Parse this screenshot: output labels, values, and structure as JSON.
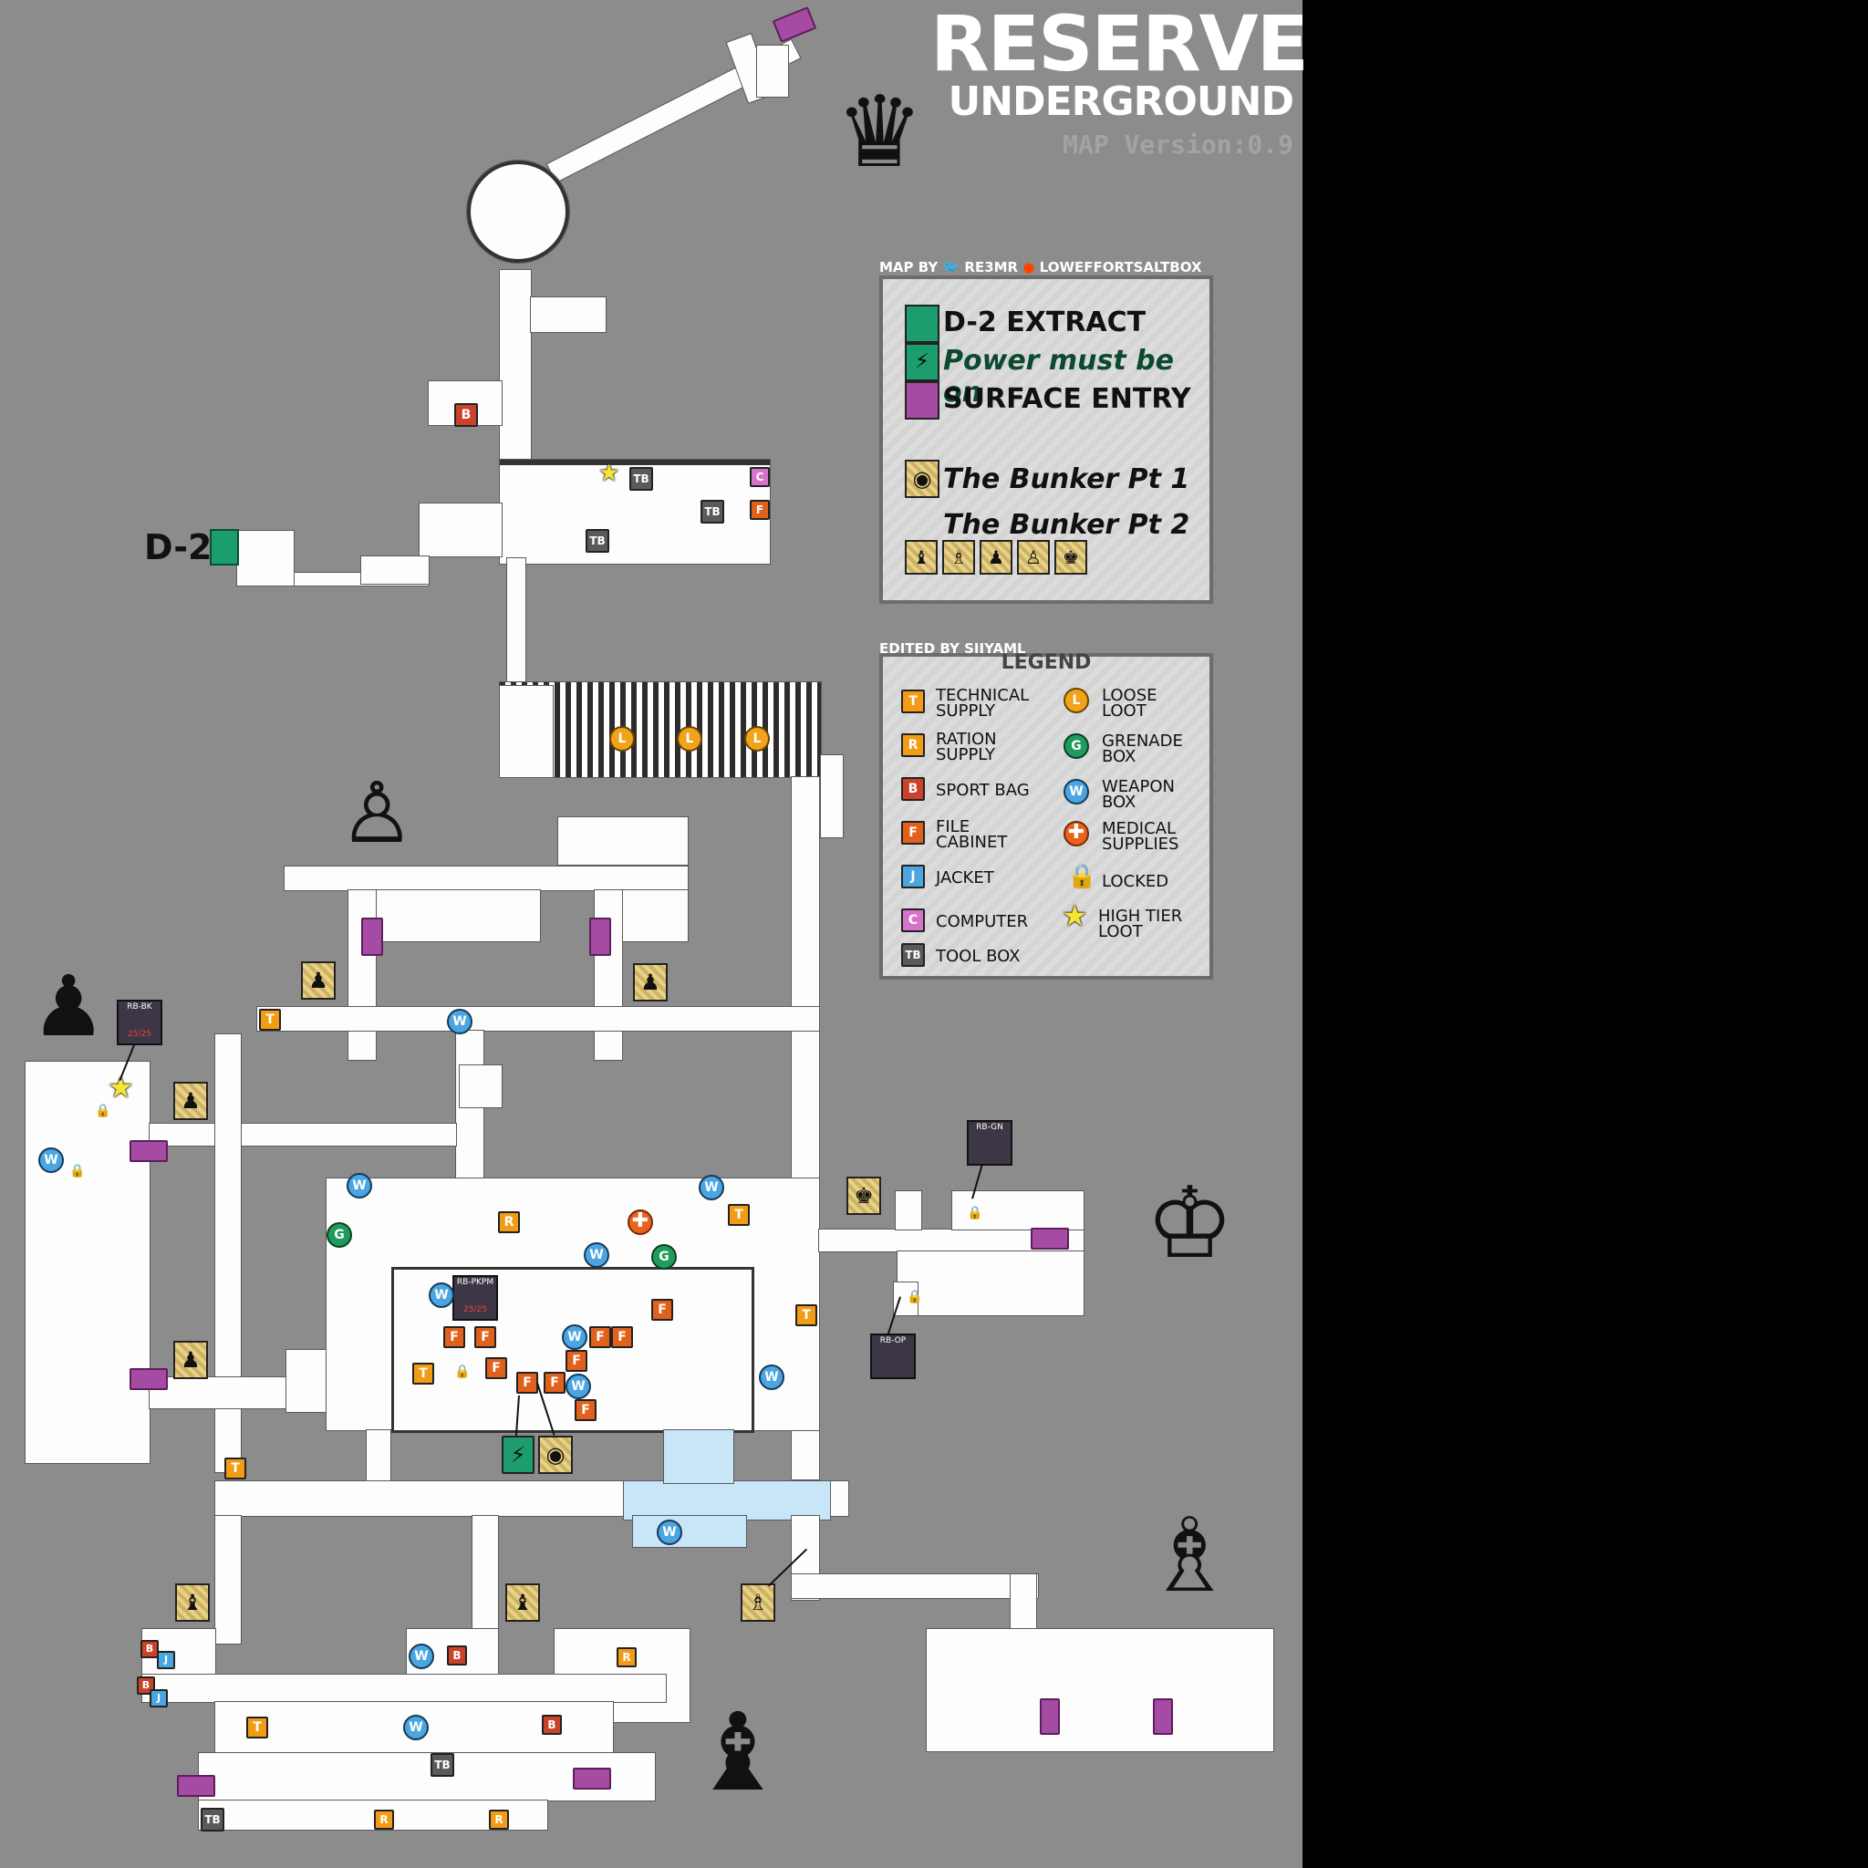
{
  "header": {
    "title": "RESERVE",
    "subtitle": "UNDERGROUND",
    "version": "MAP  Version:0.9"
  },
  "credits": {
    "map_by": "MAP BY",
    "twitter": "RE3MR",
    "reddit": "LOWEFFORTSALTBOX",
    "edited_by": "EDITED BY SIIYAML"
  },
  "extract_legend": {
    "d2_extract": "D-2 EXTRACT",
    "power": "Power must be on",
    "surface_entry": "SURFACE ENTRY",
    "bunker_pt1": "The Bunker Pt 1",
    "bunker_pt2": "The Bunker Pt 2"
  },
  "legend": {
    "title": "LEGEND",
    "technical_supply": [
      "TECHNICAL",
      "SUPPLY"
    ],
    "ration_supply": [
      "RATION",
      "SUPPLY"
    ],
    "sport_bag": "SPORT BAG",
    "file_cabinet": [
      "FILE",
      "CABINET"
    ],
    "jacket": "JACKET",
    "computer": "COMPUTER",
    "tool_box": "TOOL BOX",
    "loose_loot": [
      "LOOSE",
      "LOOT"
    ],
    "grenade_box": [
      "GRENADE",
      "BOX"
    ],
    "weapon_box": [
      "WEAPON",
      "BOX"
    ],
    "medical_supplies": [
      "MEDICAL",
      "SUPPLIES"
    ],
    "locked": "LOCKED",
    "high_tier_loot": [
      "HIGH TIER",
      "LOOT"
    ]
  },
  "marker_letters": {
    "t": "T",
    "r": "R",
    "b": "B",
    "f": "F",
    "j": "J",
    "c": "C",
    "tb": "TB",
    "w": "W",
    "l": "L",
    "g": "G"
  },
  "map_labels": {
    "d2": "D-2",
    "keycards": {
      "bk": {
        "name": "RB-BK",
        "count": "25/25"
      },
      "pkpm": {
        "name": "RB-PKPM",
        "count": "25/25"
      },
      "gn": {
        "name": "RB-GN"
      },
      "op": {
        "name": "RB-OP"
      }
    }
  },
  "colors": {
    "background": "#8c8c8c",
    "extract_green": "#1b9d6e",
    "surface_entry_purple": "#a64ba3",
    "technical_orange": "#f29b15",
    "sport_bag_red": "#c9422a",
    "weapon_blue": "#4aa5e0",
    "grenade_green": "#1f9c5c",
    "computer_pink": "#d673c8"
  },
  "icons": {
    "queen_zone": "queen-icon",
    "pawn_zone": "pawn-icon",
    "king_zone": "king-icon",
    "bishop_zone": "bishop-icon",
    "knight_zone": "knight-icon",
    "bunker_marker": "bunker-hatch-icon",
    "power_marker": "lightning-icon",
    "high_tier": "star-icon",
    "locked": "padlock-icon"
  }
}
